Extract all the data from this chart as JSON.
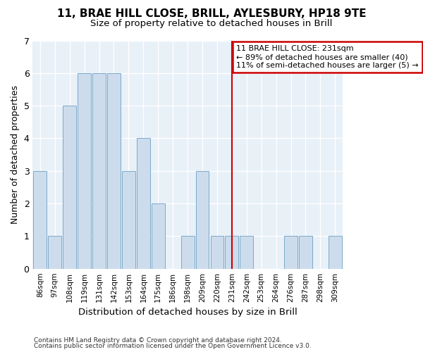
{
  "title1": "11, BRAE HILL CLOSE, BRILL, AYLESBURY, HP18 9TE",
  "title2": "Size of property relative to detached houses in Brill",
  "xlabel": "Distribution of detached houses by size in Brill",
  "ylabel": "Number of detached properties",
  "categories": [
    "86sqm",
    "97sqm",
    "108sqm",
    "119sqm",
    "131sqm",
    "142sqm",
    "153sqm",
    "164sqm",
    "175sqm",
    "186sqm",
    "198sqm",
    "209sqm",
    "220sqm",
    "231sqm",
    "242sqm",
    "253sqm",
    "264sqm",
    "276sqm",
    "287sqm",
    "298sqm",
    "309sqm"
  ],
  "values": [
    3,
    1,
    5,
    6,
    6,
    6,
    3,
    4,
    2,
    0,
    1,
    3,
    1,
    1,
    1,
    0,
    0,
    1,
    1,
    0,
    1
  ],
  "bar_color": "#cddcec",
  "bar_edgecolor": "#7aaaca",
  "highlight_index": 13,
  "highlight_color": "#cc0000",
  "annotation_title": "11 BRAE HILL CLOSE: 231sqm",
  "annotation_line1": "← 89% of detached houses are smaller (40)",
  "annotation_line2": "11% of semi-detached houses are larger (5) →",
  "annotation_box_color": "#cc0000",
  "ylim": [
    0,
    7
  ],
  "yticks": [
    0,
    1,
    2,
    3,
    4,
    5,
    6,
    7
  ],
  "plot_bg_color": "#e8f0f8",
  "fig_bg_color": "#ffffff",
  "footer_line1": "Contains HM Land Registry data © Crown copyright and database right 2024.",
  "footer_line2": "Contains public sector information licensed under the Open Government Licence v3.0."
}
